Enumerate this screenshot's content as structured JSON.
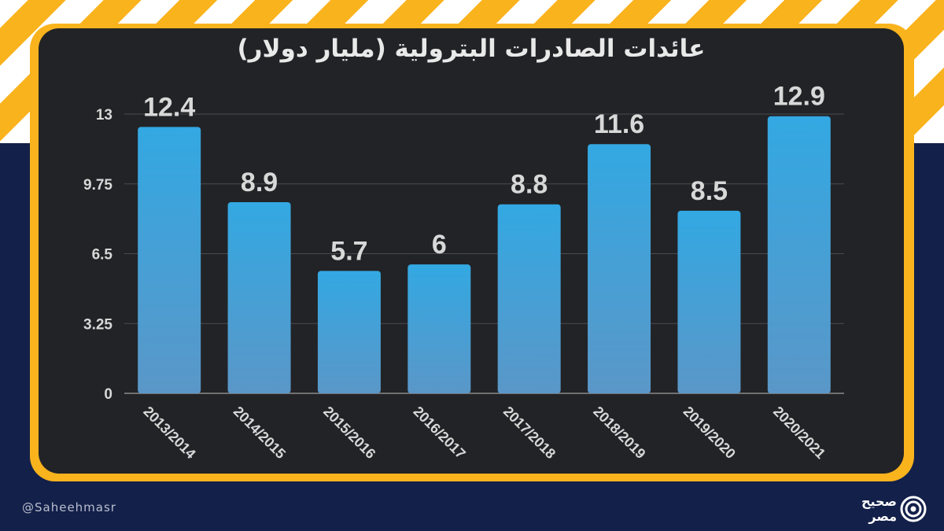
{
  "chart_data": {
    "type": "bar",
    "title": "عائدات الصادرات البترولية (مليار دولار)",
    "categories": [
      "2013/2014",
      "2014/2015",
      "2015/2016",
      "2016/2017",
      "2017/2018",
      "2018/2019",
      "2019/2020",
      "2020/2021"
    ],
    "values": [
      12.4,
      8.9,
      5.7,
      6,
      8.8,
      11.6,
      8.5,
      12.9
    ],
    "value_labels": [
      "12.4",
      "8.9",
      "5.7",
      "6",
      "8.8",
      "11.6",
      "8.5",
      "12.9"
    ],
    "yticks": [
      "0",
      "3.25",
      "6.5",
      "9.75",
      "13"
    ],
    "ylim": [
      0,
      13
    ],
    "grid": true,
    "xlabel": "",
    "ylabel": "",
    "colors": {
      "bar_top": "#33a8e2",
      "bar_bottom": "#5a97c8",
      "labels": "#d8d8d8",
      "panel": "#222326",
      "frame": "#f9b31d"
    }
  },
  "footer": {
    "handle": "@Saheehmasr",
    "logo_text_line1": "صحيح",
    "logo_text_line2": "مصر",
    "logo_icon": "target-logo-icon"
  }
}
